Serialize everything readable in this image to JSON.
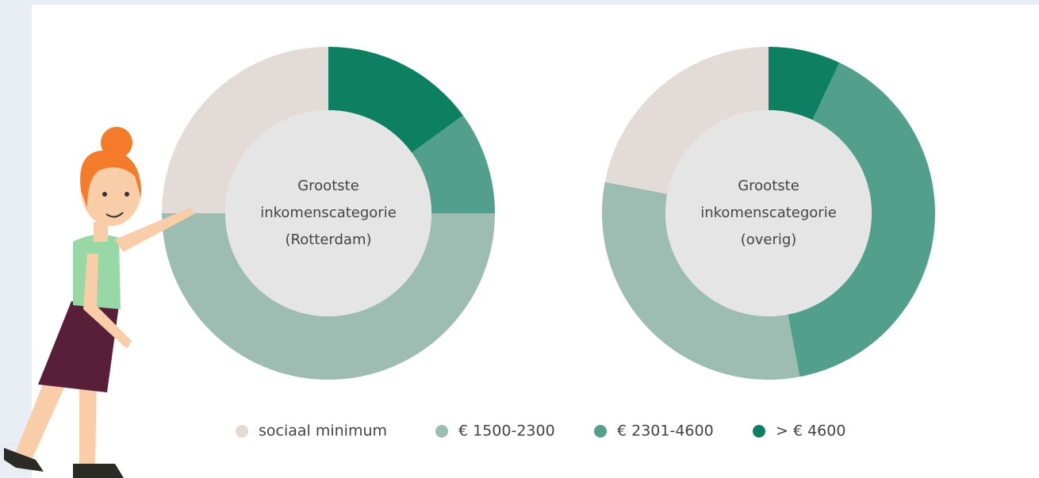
{
  "chart_data": [
    {
      "type": "pie",
      "donut": true,
      "center_label": [
        "Grootste",
        "inkomenscategorie",
        "(Rotterdam)"
      ],
      "categories": [
        "sociaal minimum",
        "€ 1500-2300",
        "€ 2301-4600",
        "> € 4600"
      ],
      "values": [
        25,
        50,
        10,
        15
      ],
      "colors": [
        "#e3dbd7",
        "#9dbcb2",
        "#52a08b",
        "#0e8062"
      ]
    },
    {
      "type": "pie",
      "donut": true,
      "center_label": [
        "Grootste",
        "inkomenscategorie",
        "(overig)"
      ],
      "categories": [
        "sociaal minimum",
        "€ 1500-2300",
        "€ 2301-4600",
        "> € 4600"
      ],
      "values": [
        22,
        31,
        40,
        7
      ],
      "colors": [
        "#e3dbd7",
        "#9dbcb2",
        "#52a08b",
        "#0e8062"
      ]
    }
  ]
}
